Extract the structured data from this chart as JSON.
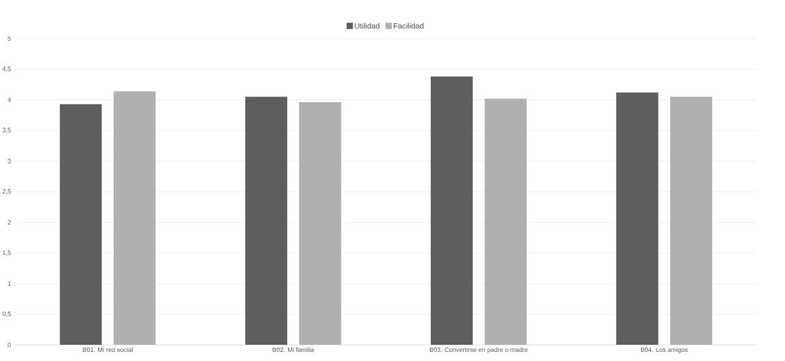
{
  "chart_data": {
    "type": "bar",
    "categories": [
      "B01. Mi red social",
      "B02. Mi familia",
      "B03. Convertirse en padre o madre",
      "B04. Los amigos"
    ],
    "series": [
      {
        "name": "Utilidad",
        "color": "#5e5e5e",
        "values": [
          3.93,
          4.05,
          4.38,
          4.12
        ]
      },
      {
        "name": "Facilidad",
        "color": "#b0b0b0",
        "values": [
          4.14,
          3.96,
          4.02,
          4.05
        ]
      }
    ],
    "ylim": [
      0,
      5
    ],
    "yticks": [
      0,
      {
        "value": 0.5,
        "label": "0,5"
      },
      1,
      {
        "value": 1.5,
        "label": "1,5"
      },
      2,
      {
        "value": 2.5,
        "label": "2,5"
      },
      3,
      {
        "value": 3.5,
        "label": "3,5"
      },
      4,
      {
        "value": 4.5,
        "label": "4,5"
      },
      5
    ],
    "grid": "y",
    "legend": "top"
  }
}
